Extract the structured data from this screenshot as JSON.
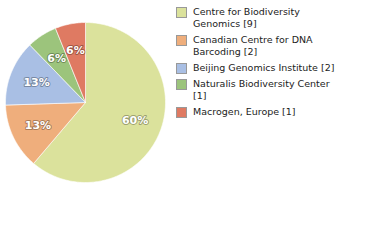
{
  "chart_data": {
    "type": "pie",
    "categories": [
      "Centre for Biodiversity Genomics [9]",
      "Canadian Centre for DNA Barcoding [2]",
      "Beijing Genomics Institute [2]",
      "Naturalis Biodiversity Center [1]",
      "Macrogen, Europe [1]"
    ],
    "values": [
      60,
      13,
      13,
      6,
      6
    ],
    "value_labels": [
      "60%",
      "13%",
      "13%",
      "6%",
      "6%"
    ],
    "colors": [
      "#dbe29c",
      "#efae7c",
      "#a9bfe4",
      "#9cc47c",
      "#df7a62"
    ],
    "data_labels": true,
    "legend": "right"
  }
}
